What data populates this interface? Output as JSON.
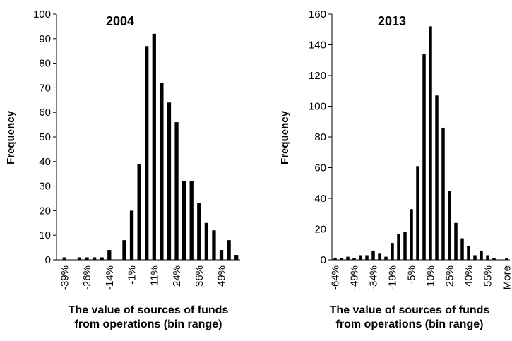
{
  "chart_data": [
    {
      "type": "bar",
      "title": "2004",
      "ylabel": "Frequency",
      "xlabel": [
        "The value of sources of funds",
        "from operations (bin range)"
      ],
      "categories": [
        "-39%",
        null,
        null,
        "-26%",
        null,
        null,
        "-14%",
        null,
        null,
        "-1%",
        null,
        null,
        "11%",
        null,
        null,
        "24%",
        null,
        null,
        "36%",
        null,
        null,
        "49%",
        null,
        null
      ],
      "values": [
        1,
        0,
        1,
        1,
        1,
        1,
        4,
        0,
        8,
        20,
        39,
        87,
        92,
        72,
        64,
        56,
        32,
        32,
        23,
        15,
        12,
        4,
        8,
        2
      ],
      "color": "#000000",
      "ylim": [
        0,
        100
      ],
      "yticks": [
        0,
        10,
        20,
        30,
        40,
        50,
        60,
        70,
        80,
        90,
        100
      ]
    },
    {
      "type": "bar",
      "title": "2013",
      "ylabel": "Frequency",
      "xlabel": [
        "The value of sources of funds",
        "from operations (bin range)"
      ],
      "categories": [
        "-64%",
        null,
        null,
        "-49%",
        null,
        null,
        "-34%",
        null,
        null,
        "-19%",
        null,
        null,
        "-5%",
        null,
        null,
        "10%",
        null,
        null,
        "25%",
        null,
        null,
        "40%",
        null,
        null,
        "55%",
        null,
        null,
        "More"
      ],
      "values": [
        1,
        1,
        2,
        1,
        3,
        3,
        6,
        4,
        2,
        11,
        17,
        18,
        33,
        61,
        134,
        152,
        107,
        86,
        45,
        24,
        14,
        9,
        3,
        6,
        3,
        1,
        0,
        1
      ],
      "color": "#000000",
      "ylim": [
        0,
        160
      ],
      "yticks": [
        0,
        20,
        40,
        60,
        80,
        100,
        120,
        140,
        160
      ]
    }
  ]
}
